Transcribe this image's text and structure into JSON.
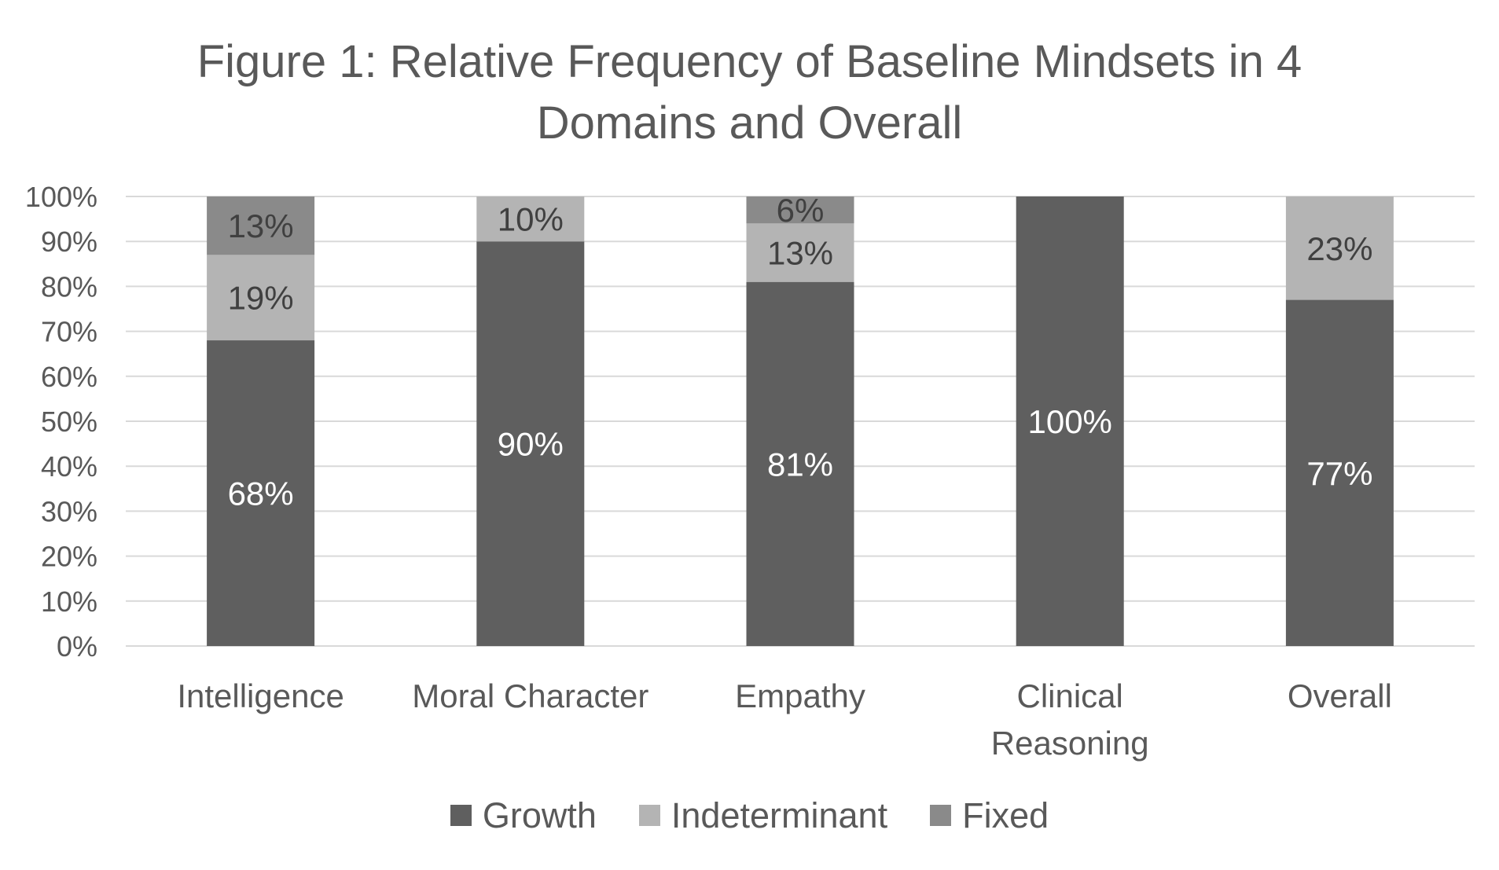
{
  "chart_data": {
    "type": "bar",
    "stacked": true,
    "title": "Figure 1: Relative Frequency of Baseline Mindsets in 4 Domains and Overall",
    "title_lines": [
      "Figure 1: Relative Frequency of Baseline Mindsets in 4",
      "Domains and Overall"
    ],
    "categories": [
      "Intelligence",
      "Moral Character",
      "Empathy",
      "Clinical Reasoning",
      "Overall"
    ],
    "category_lines": [
      [
        "Intelligence"
      ],
      [
        "Moral Character"
      ],
      [
        "Empathy"
      ],
      [
        "Clinical",
        "Reasoning"
      ],
      [
        "Overall"
      ]
    ],
    "series": [
      {
        "name": "Growth",
        "values": [
          68,
          90,
          81,
          100,
          77
        ],
        "labels": [
          "68%",
          "90%",
          "81%",
          "100%",
          "77%"
        ],
        "color": "#5f5f5f",
        "label_color": "#ffffff"
      },
      {
        "name": "Indeterminant",
        "values": [
          19,
          10,
          13,
          0,
          23
        ],
        "labels": [
          "19%",
          "10%",
          "13%",
          "",
          "23%"
        ],
        "color": "#b4b4b4",
        "label_color": "#404040"
      },
      {
        "name": "Fixed",
        "values": [
          13,
          0,
          6,
          0,
          0
        ],
        "labels": [
          "13%",
          "",
          "6%",
          "",
          ""
        ],
        "color": "#8a8a8a",
        "label_color": "#404040"
      }
    ],
    "ylim": [
      0,
      100
    ],
    "yticks": [
      0,
      10,
      20,
      30,
      40,
      50,
      60,
      70,
      80,
      90,
      100
    ],
    "ytick_labels": [
      "0%",
      "10%",
      "20%",
      "30%",
      "40%",
      "50%",
      "60%",
      "70%",
      "80%",
      "90%",
      "100%"
    ],
    "xlabel": "",
    "ylabel": "",
    "grid": true,
    "legend_position": "bottom",
    "colors": {
      "grid": "#d9d9d9",
      "axis": "#d9d9d9",
      "text": "#595959"
    }
  }
}
